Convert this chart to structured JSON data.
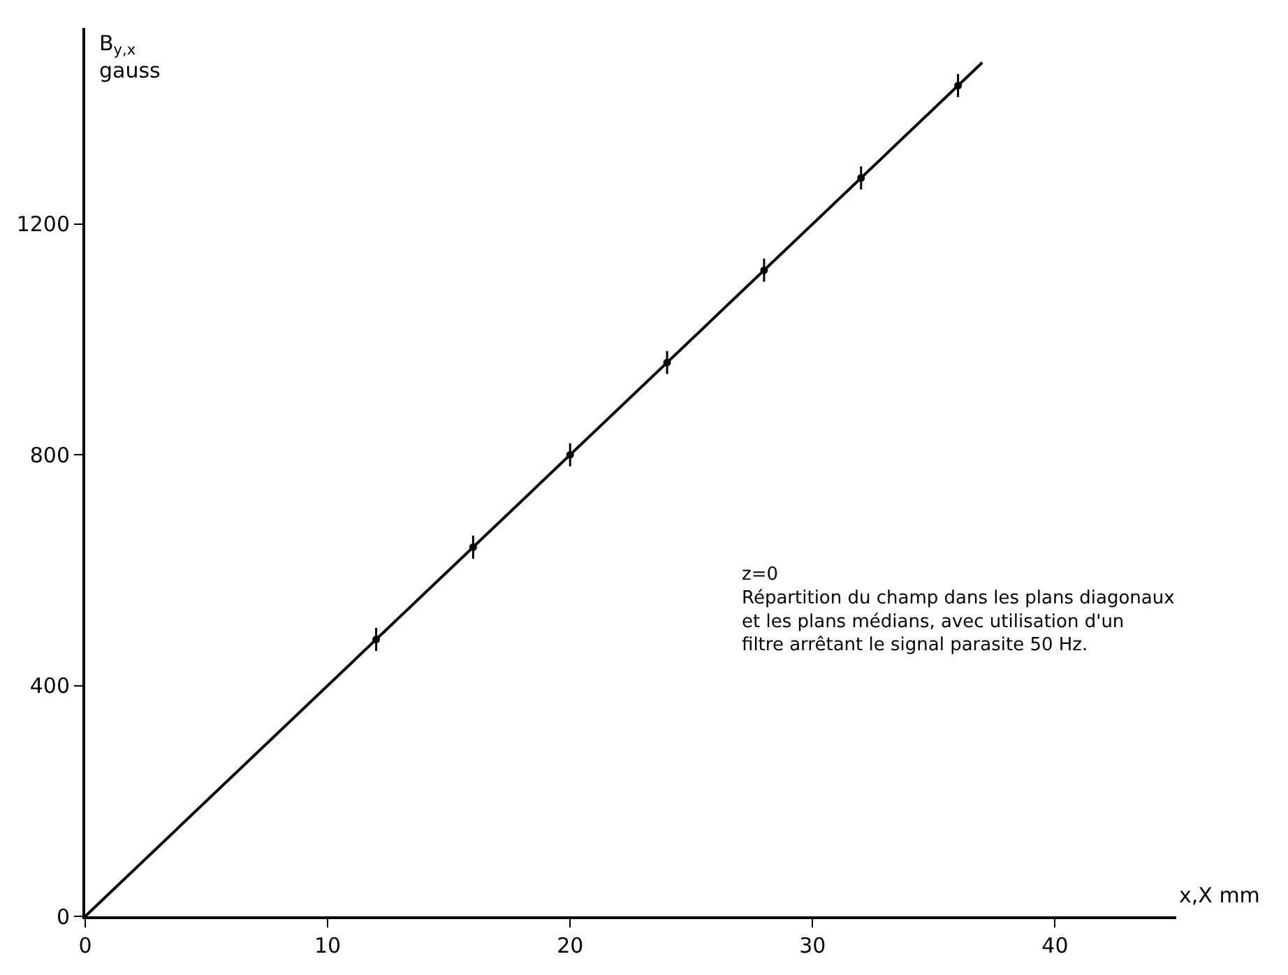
{
  "chart_data": {
    "type": "scatter",
    "xlabel": "x,X mm",
    "ylabel": "B$_{y,x}$\ngauss",
    "xlim": [
      0,
      45
    ],
    "ylim": [
      0,
      1540
    ],
    "xticks": [
      0,
      10,
      20,
      30,
      40
    ],
    "yticks": [
      0,
      400,
      800,
      1200
    ],
    "series": [
      {
        "type": "line",
        "color": "#000000",
        "x": [
          0,
          37
        ],
        "values": [
          0,
          1480
        ]
      },
      {
        "color": "#000000",
        "marker": "circle",
        "x": [
          12,
          16,
          20,
          24,
          28,
          32,
          36
        ],
        "values": [
          480,
          640,
          800,
          960,
          1120,
          1280,
          1440
        ],
        "errors": [
          20,
          20,
          20,
          20,
          20,
          20,
          20
        ]
      }
    ],
    "annotations": [
      "z=0\nRépartition du champ dans les plans diagonaux\net les plans médians, avec utilisation d'un\nfiltre arrêtant le signal parasite 50 Hz."
    ]
  }
}
